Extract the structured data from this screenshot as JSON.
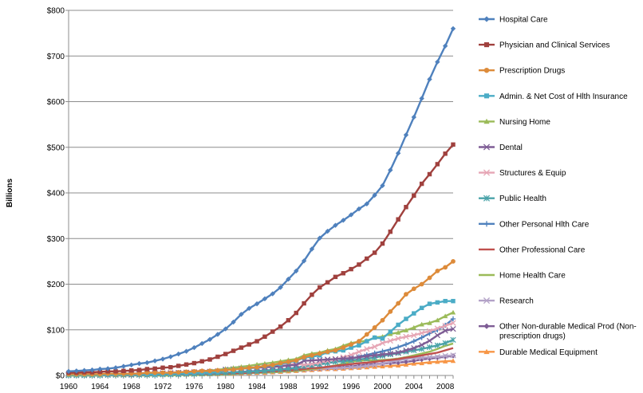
{
  "chart_data": {
    "type": "line",
    "title": "",
    "xlabel": "",
    "ylabel": "Billions",
    "ylim": [
      0,
      800
    ],
    "xlim": [
      1960,
      2009
    ],
    "y_ticks": [
      0,
      100,
      200,
      300,
      400,
      500,
      600,
      700,
      800
    ],
    "y_tick_labels": [
      "$0",
      "$100",
      "$200",
      "$300",
      "$400",
      "$500",
      "$600",
      "$700",
      "$800"
    ],
    "x_ticks": [
      1960,
      1964,
      1968,
      1972,
      1976,
      1980,
      1984,
      1988,
      1992,
      1996,
      2000,
      2004,
      2008
    ],
    "x_tick_labels": [
      "1960",
      "1964",
      "1968",
      "1972",
      "1976",
      "1980",
      "1984",
      "1988",
      "1992",
      "1996",
      "2000",
      "2004",
      "2008"
    ],
    "grid": "horizontal",
    "legend_position": "right",
    "x": [
      1960,
      1961,
      1962,
      1963,
      1964,
      1965,
      1966,
      1967,
      1968,
      1969,
      1970,
      1971,
      1972,
      1973,
      1974,
      1975,
      1976,
      1977,
      1978,
      1979,
      1980,
      1981,
      1982,
      1983,
      1984,
      1985,
      1986,
      1987,
      1988,
      1989,
      1990,
      1991,
      1992,
      1993,
      1994,
      1995,
      1996,
      1997,
      1998,
      1999,
      2000,
      2001,
      2002,
      2003,
      2004,
      2005,
      2006,
      2007,
      2008,
      2009
    ],
    "series": [
      {
        "name": "Hospital Care",
        "color": "#4F81BD",
        "marker": "diamond",
        "values": [
          9,
          10,
          11,
          12,
          14,
          15,
          17,
          20,
          23,
          26,
          28,
          32,
          36,
          41,
          47,
          53,
          61,
          70,
          79,
          90,
          102,
          117,
          134,
          147,
          157,
          168,
          179,
          193,
          211,
          229,
          251,
          277,
          301,
          316,
          329,
          340,
          352,
          365,
          376,
          395,
          416,
          450,
          487,
          527,
          566,
          607,
          649,
          687,
          722,
          760
        ]
      },
      {
        "name": "Physician and Clinical Services",
        "color": "#A0413E",
        "marker": "square",
        "values": [
          6,
          6,
          7,
          7,
          8,
          9,
          9,
          10,
          11,
          12,
          14,
          15,
          17,
          18,
          21,
          24,
          27,
          31,
          35,
          41,
          47,
          54,
          61,
          68,
          75,
          85,
          96,
          107,
          121,
          137,
          158,
          177,
          193,
          204,
          216,
          224,
          233,
          243,
          256,
          269,
          289,
          315,
          342,
          369,
          394,
          420,
          441,
          463,
          486,
          506
        ]
      },
      {
        "name": "Prescription Drugs",
        "color": "#DD8B3A",
        "marker": "circle",
        "values": [
          3,
          3,
          3,
          3,
          3,
          4,
          4,
          4,
          4,
          4,
          6,
          6,
          6,
          6,
          7,
          8,
          9,
          10,
          10,
          11,
          12,
          13,
          15,
          17,
          18,
          21,
          23,
          27,
          30,
          33,
          40,
          44,
          48,
          52,
          55,
          61,
          68,
          75,
          90,
          105,
          121,
          140,
          158,
          178,
          190,
          200,
          214,
          229,
          237,
          250
        ]
      },
      {
        "name": "Admin. & Net Cost of Hlth Insurance",
        "color": "#4BACC6",
        "marker": "square",
        "values": [
          2,
          2,
          2,
          2,
          2,
          2,
          3,
          3,
          3,
          3,
          3,
          3,
          4,
          4,
          5,
          5,
          6,
          7,
          7,
          8,
          12,
          13,
          15,
          16,
          18,
          21,
          22,
          25,
          29,
          32,
          39,
          41,
          44,
          51,
          53,
          55,
          61,
          66,
          75,
          83,
          81,
          96,
          111,
          124,
          136,
          148,
          157,
          160,
          163,
          163
        ]
      },
      {
        "name": "Nursing Home",
        "color": "#9BBB59",
        "marker": "triangle",
        "values": [
          1,
          1,
          1,
          1,
          1,
          2,
          2,
          2,
          3,
          3,
          4,
          4,
          5,
          5,
          6,
          7,
          8,
          9,
          11,
          12,
          15,
          17,
          19,
          21,
          24,
          26,
          28,
          31,
          34,
          36,
          44,
          48,
          50,
          55,
          58,
          65,
          71,
          74,
          76,
          83,
          85,
          91,
          94,
          99,
          105,
          112,
          115,
          121,
          130,
          138
        ]
      },
      {
        "name": "Dental",
        "color": "#7E5D95",
        "marker": "x",
        "values": [
          2,
          2,
          2,
          2,
          2,
          3,
          3,
          3,
          3,
          4,
          5,
          5,
          5,
          5,
          6,
          6,
          7,
          7,
          8,
          9,
          13,
          14,
          15,
          16,
          17,
          18,
          19,
          20,
          22,
          23,
          32,
          33,
          34,
          35,
          36,
          37,
          38,
          40,
          42,
          44,
          46,
          48,
          50,
          55,
          60,
          67,
          76,
          88,
          98,
          102
        ]
      },
      {
        "name": "Structures & Equip",
        "color": "#E6A6B5",
        "marker": "x",
        "values": [
          3,
          3,
          3,
          3,
          3,
          4,
          4,
          4,
          4,
          5,
          5,
          5,
          5,
          6,
          6,
          7,
          8,
          8,
          9,
          10,
          12,
          14,
          16,
          17,
          18,
          19,
          20,
          22,
          24,
          26,
          23,
          25,
          28,
          32,
          35,
          40,
          45,
          52,
          58,
          63,
          71,
          76,
          81,
          85,
          88,
          93,
          97,
          103,
          109,
          115
        ]
      },
      {
        "name": "Public Health",
        "color": "#4AA3A9",
        "marker": "asterisk",
        "values": [
          0,
          0,
          0,
          0,
          0,
          1,
          1,
          1,
          1,
          1,
          1,
          1,
          2,
          2,
          2,
          3,
          3,
          4,
          4,
          5,
          6,
          7,
          8,
          8,
          9,
          10,
          12,
          13,
          15,
          16,
          20,
          22,
          24,
          27,
          30,
          31,
          33,
          35,
          37,
          39,
          43,
          46,
          49,
          52,
          55,
          58,
          62,
          66,
          71,
          78
        ]
      },
      {
        "name": "Other Personal Hlth Care",
        "color": "#4F81BD",
        "marker": "plus",
        "values": [
          1,
          1,
          1,
          1,
          1,
          1,
          1,
          1,
          1,
          2,
          2,
          2,
          2,
          2,
          2,
          3,
          3,
          4,
          4,
          5,
          6,
          7,
          8,
          9,
          10,
          11,
          12,
          13,
          15,
          17,
          20,
          22,
          25,
          27,
          30,
          33,
          37,
          41,
          45,
          49,
          53,
          57,
          62,
          68,
          75,
          83,
          92,
          100,
          110,
          124
        ]
      },
      {
        "name": "Other Professional Care",
        "color": "#C0504D",
        "marker": "none",
        "values": [
          1,
          1,
          1,
          1,
          1,
          1,
          1,
          1,
          1,
          1,
          1,
          1,
          2,
          2,
          2,
          2,
          3,
          3,
          3,
          4,
          4,
          5,
          5,
          6,
          7,
          8,
          9,
          10,
          11,
          12,
          14,
          16,
          17,
          19,
          21,
          23,
          25,
          27,
          28,
          30,
          32,
          34,
          36,
          39,
          41,
          44,
          47,
          50,
          55,
          60
        ]
      },
      {
        "name": "Home Health Care",
        "color": "#9BBB59",
        "marker": "none",
        "values": [
          0,
          0,
          0,
          0,
          0,
          0,
          0,
          0,
          0,
          0,
          0,
          0,
          0,
          0,
          1,
          1,
          1,
          1,
          2,
          2,
          2,
          3,
          4,
          5,
          6,
          6,
          7,
          8,
          9,
          10,
          12,
          14,
          16,
          19,
          22,
          26,
          30,
          32,
          33,
          33,
          34,
          35,
          37,
          40,
          44,
          48,
          52,
          58,
          65,
          70
        ]
      },
      {
        "name": "Research",
        "color": "#B3A2C7",
        "marker": "x",
        "values": [
          1,
          1,
          1,
          1,
          1,
          1,
          2,
          2,
          2,
          2,
          2,
          2,
          2,
          3,
          3,
          4,
          4,
          4,
          5,
          5,
          6,
          6,
          7,
          7,
          8,
          8,
          9,
          10,
          11,
          12,
          13,
          14,
          15,
          16,
          16,
          17,
          18,
          19,
          21,
          23,
          26,
          30,
          33,
          36,
          38,
          39,
          40,
          41,
          43,
          44
        ]
      },
      {
        "name": "Other Non-durable Medical Prod (Non-prescription drugs)",
        "color": "#7E5D95",
        "marker": "diamond",
        "values": [
          1,
          1,
          2,
          2,
          2,
          2,
          3,
          3,
          3,
          3,
          3,
          3,
          3,
          3,
          4,
          4,
          4,
          5,
          5,
          6,
          6,
          7,
          8,
          8,
          9,
          10,
          10,
          11,
          12,
          13,
          14,
          15,
          16,
          17,
          18,
          19,
          20,
          22,
          24,
          25,
          26,
          27,
          28,
          30,
          32,
          35,
          37,
          39,
          41,
          43
        ]
      },
      {
        "name": "Durable Medical Equipment",
        "color": "#F79646",
        "marker": "triangle",
        "values": [
          1,
          1,
          1,
          1,
          1,
          1,
          1,
          1,
          1,
          1,
          1,
          2,
          2,
          2,
          2,
          2,
          3,
          3,
          3,
          3,
          4,
          4,
          5,
          5,
          6,
          6,
          7,
          8,
          9,
          10,
          11,
          12,
          13,
          14,
          14,
          15,
          16,
          17,
          18,
          19,
          20,
          21,
          22,
          24,
          26,
          27,
          29,
          30,
          31,
          32
        ]
      }
    ]
  }
}
